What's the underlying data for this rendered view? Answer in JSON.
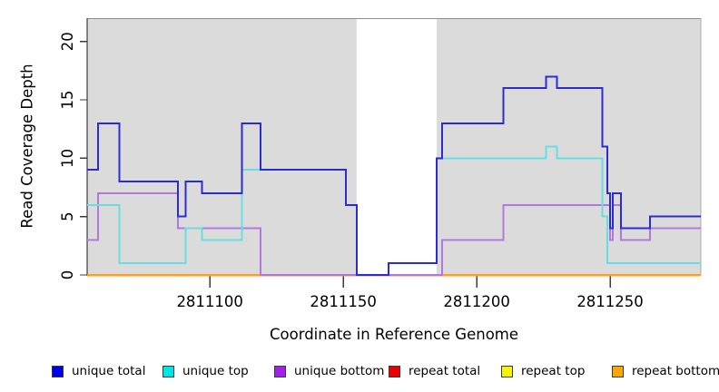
{
  "chart_data": {
    "type": "line",
    "subtype": "step-coverage",
    "title": "",
    "xlabel": "Coordinate in Reference Genome",
    "ylabel": "Read Coverage Depth",
    "x_range": [
      2811054,
      2811284
    ],
    "y_range": [
      0,
      22
    ],
    "x_ticks": [
      2811100,
      2811150,
      2811200,
      2811250
    ],
    "y_ticks": [
      0,
      5,
      10,
      15,
      20
    ],
    "grid": false,
    "legend_position": "bottom",
    "background": {
      "plot_fill": "#dbdbdb",
      "page_fill": "#ffffff",
      "uncovered_region": {
        "x_start": 2811155,
        "x_end": 2811185,
        "fill": "#ffffff"
      }
    },
    "series": [
      {
        "name": "unique total",
        "color": "#2b2bd7",
        "legend_color": "#0000ee",
        "points": [
          [
            2811054,
            9
          ],
          [
            2811058,
            13
          ],
          [
            2811066,
            8
          ],
          [
            2811088,
            5
          ],
          [
            2811091,
            8
          ],
          [
            2811097,
            7
          ],
          [
            2811112,
            13
          ],
          [
            2811119,
            9
          ],
          [
            2811151,
            6
          ],
          [
            2811155,
            0
          ],
          [
            2811167,
            1
          ],
          [
            2811185,
            10
          ],
          [
            2811187,
            13
          ],
          [
            2811210,
            16
          ],
          [
            2811226,
            17
          ],
          [
            2811230,
            16
          ],
          [
            2811247,
            11
          ],
          [
            2811249,
            7
          ],
          [
            2811250,
            4
          ],
          [
            2811251,
            7
          ],
          [
            2811254,
            4
          ],
          [
            2811265,
            5
          ],
          [
            2811284,
            5
          ]
        ]
      },
      {
        "name": "unique top",
        "color": "#67dfe2",
        "legend_color": "#00e6e6",
        "points": [
          [
            2811054,
            6
          ],
          [
            2811066,
            1
          ],
          [
            2811091,
            4
          ],
          [
            2811097,
            3
          ],
          [
            2811112,
            9
          ],
          [
            2811151,
            6
          ],
          [
            2811155,
            0
          ],
          [
            2811167,
            1
          ],
          [
            2811185,
            10
          ],
          [
            2811226,
            11
          ],
          [
            2811230,
            10
          ],
          [
            2811247,
            5
          ],
          [
            2811249,
            1
          ],
          [
            2811284,
            1
          ]
        ]
      },
      {
        "name": "unique bottom",
        "color": "#b478dd",
        "legend_color": "#a020f0",
        "points": [
          [
            2811054,
            3
          ],
          [
            2811058,
            7
          ],
          [
            2811088,
            4
          ],
          [
            2811119,
            0
          ],
          [
            2811187,
            3
          ],
          [
            2811210,
            6
          ],
          [
            2811250,
            3
          ],
          [
            2811251,
            6
          ],
          [
            2811254,
            3
          ],
          [
            2811265,
            4
          ],
          [
            2811284,
            4
          ]
        ]
      },
      {
        "name": "repeat total",
        "color": "#e03030",
        "legend_color": "#ee0000",
        "points": [
          [
            2811054,
            0
          ],
          [
            2811284,
            0
          ]
        ]
      },
      {
        "name": "repeat top",
        "color": "#f2e705",
        "legend_color": "#f5f500",
        "points": [
          [
            2811054,
            0
          ],
          [
            2811284,
            0
          ]
        ]
      },
      {
        "name": "repeat bottom",
        "color": "#ff9f1c",
        "legend_color": "#ffa500",
        "points": [
          [
            2811054,
            0
          ],
          [
            2811284,
            0
          ]
        ]
      }
    ]
  }
}
